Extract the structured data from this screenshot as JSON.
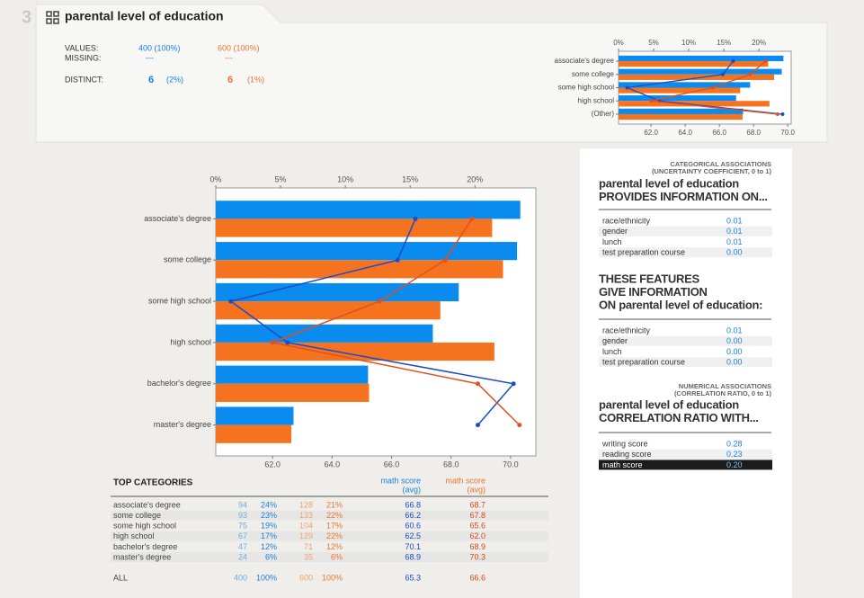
{
  "header": {
    "number": "3",
    "title": "parental level of education"
  },
  "summary": {
    "rows": [
      {
        "label": "VALUES:",
        "a": "400 (100%)",
        "b": "600 (100%)"
      },
      {
        "label": "MISSING:",
        "a": "---",
        "b": "---"
      }
    ],
    "distinct": {
      "label": "DISTINCT:",
      "a": "6",
      "a_pct": "(2%)",
      "b": "6",
      "b_pct": "(1%)"
    }
  },
  "charts": {
    "mini": {
      "type": "bar",
      "categories": [
        "associate's degree",
        "some college",
        "some high school",
        "high school",
        "(Other)"
      ],
      "series": [
        {
          "color": "#0a8bef",
          "values": [
            23.5,
            23.25,
            18.75,
            16.75,
            17.75
          ]
        },
        {
          "color": "#f5731f",
          "values": [
            21.33,
            22.17,
            17.33,
            21.5,
            17.67
          ]
        }
      ],
      "lines": [
        {
          "color": "#1a4cc9",
          "values": [
            66.8,
            66.2,
            60.6,
            62.5,
            69.7
          ]
        },
        {
          "color": "#e2501c",
          "values": [
            68.7,
            67.8,
            65.6,
            62.0,
            69.4
          ]
        }
      ],
      "xlim": [
        0,
        24.6
      ],
      "xticks": [
        {
          "value": 0,
          "label": "0%"
        },
        {
          "value": 5,
          "label": "5%"
        },
        {
          "value": 10,
          "label": "10%"
        },
        {
          "value": 15,
          "label": "15%"
        },
        {
          "value": 20,
          "label": "20%"
        }
      ],
      "x2lim": [
        60.1,
        70.2
      ],
      "x2ticks": [
        {
          "value": 62,
          "label": "62.0"
        },
        {
          "value": 64,
          "label": "64.0"
        },
        {
          "value": 66,
          "label": "66.0"
        },
        {
          "value": 68,
          "label": "68.0"
        },
        {
          "value": 70,
          "label": "70.0"
        }
      ]
    },
    "main": {
      "type": "bar",
      "categories": [
        "associate's degree",
        "some college",
        "some high school",
        "high school",
        "bachelor's degree",
        "master's degree"
      ],
      "series": [
        {
          "color": "#0a8bef",
          "values": [
            23.5,
            23.25,
            18.75,
            16.75,
            11.75,
            6.0
          ]
        },
        {
          "color": "#f5731f",
          "values": [
            21.33,
            22.17,
            17.33,
            21.5,
            11.83,
            5.83
          ]
        }
      ],
      "lines": [
        {
          "color": "#1a4cc9",
          "values": [
            66.8,
            66.2,
            60.6,
            62.5,
            70.1,
            68.9
          ]
        },
        {
          "color": "#e2501c",
          "values": [
            68.7,
            67.8,
            65.6,
            62.0,
            68.9,
            70.3
          ]
        }
      ],
      "xlim": [
        0,
        24.7
      ],
      "xticks": [
        {
          "value": 0,
          "label": "0%"
        },
        {
          "value": 5,
          "label": "5%"
        },
        {
          "value": 10,
          "label": "10%"
        },
        {
          "value": 15,
          "label": "15%"
        },
        {
          "value": 20,
          "label": "20%"
        }
      ],
      "x2lim": [
        60.09,
        70.85
      ],
      "x2ticks": [
        {
          "value": 62,
          "label": "62.0"
        },
        {
          "value": 64,
          "label": "64.0"
        },
        {
          "value": 66,
          "label": "66.0"
        },
        {
          "value": 68,
          "label": "68.0"
        },
        {
          "value": 70,
          "label": "70.0"
        }
      ]
    }
  },
  "associations": {
    "categorical": {
      "title": [
        "CATEGORICAL ASSOCIATIONS",
        "(UNCERTAINTY COEFFICIENT, 0 to 1)"
      ],
      "heading": [
        "parental level of education",
        "PROVIDES INFORMATION ON..."
      ],
      "rows": [
        [
          "race/ethnicity",
          "0.01"
        ],
        [
          "gender",
          "0.01"
        ],
        [
          "lunch",
          "0.01"
        ],
        [
          "test preparation course",
          "0.00"
        ]
      ]
    },
    "reverse": {
      "heading": [
        "THESE FEATURES",
        "GIVE INFORMATION",
        "ON parental level of education:"
      ],
      "rows": [
        [
          "race/ethnicity",
          "0.01"
        ],
        [
          "gender",
          "0.00"
        ],
        [
          "lunch",
          "0.00"
        ],
        [
          "test preparation course",
          "0.00"
        ]
      ]
    },
    "numerical": {
      "title": [
        "NUMERICAL ASSOCIATIONS",
        "(CORRELATION RATIO, 0 to 1)"
      ],
      "heading": [
        "parental level of education",
        "CORRELATION RATIO WITH..."
      ],
      "rows": [
        [
          "writing score",
          "0.28"
        ],
        [
          "reading score",
          "0.23"
        ],
        [
          "math score",
          "0.20"
        ]
      ],
      "highlight_row": 2
    }
  },
  "table": {
    "title": "TOP CATEGORIES",
    "column_a": [
      "math score",
      "(avg)"
    ],
    "column_b": [
      "math score",
      "(avg)"
    ],
    "rows": [
      [
        "associate's degree",
        "94",
        "24%",
        "128",
        "21%",
        "66.8",
        "68.7"
      ],
      [
        "some college",
        "93",
        "23%",
        "133",
        "22%",
        "66.2",
        "67.8"
      ],
      [
        "some high school",
        "75",
        "19%",
        "104",
        "17%",
        "60.6",
        "65.6"
      ],
      [
        "high school",
        "67",
        "17%",
        "129",
        "22%",
        "62.5",
        "62.0"
      ],
      [
        "bachelor's degree",
        "47",
        "12%",
        "71",
        "12%",
        "70.1",
        "68.9"
      ],
      [
        "master's degree",
        "24",
        "6%",
        "35",
        "6%",
        "68.9",
        "70.3"
      ]
    ],
    "all": [
      "ALL",
      "400",
      "100%",
      "600",
      "100%",
      "65.3",
      "66.6"
    ]
  }
}
